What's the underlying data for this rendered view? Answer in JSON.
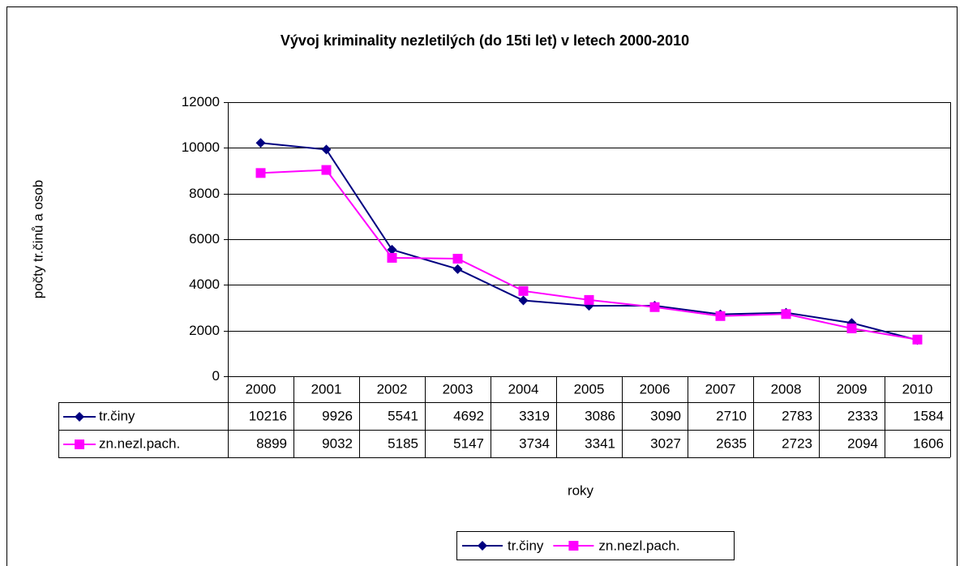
{
  "chart_data": {
    "type": "line",
    "title": "Vývoj kriminality nezletilých (do 15ti let) v letech 2000-2010",
    "ylabel": "počty tr.činů a osob",
    "xlabel": "roky",
    "categories": [
      "2000",
      "2001",
      "2002",
      "2003",
      "2004",
      "2005",
      "2006",
      "2007",
      "2008",
      "2009",
      "2010"
    ],
    "series": [
      {
        "name": "tr.činy",
        "color": "#000080",
        "marker": "diamond",
        "values": [
          10216,
          9926,
          5541,
          4692,
          3319,
          3086,
          3090,
          2710,
          2783,
          2333,
          1584
        ]
      },
      {
        "name": "zn.nezl.pach.",
        "color": "#ff00ff",
        "marker": "square",
        "values": [
          8899,
          9032,
          5185,
          5147,
          3734,
          3341,
          3027,
          2635,
          2723,
          2094,
          1606
        ]
      }
    ],
    "ylim": [
      0,
      12000
    ],
    "yticks": [
      0,
      2000,
      4000,
      6000,
      8000,
      10000,
      12000
    ],
    "grid": true,
    "legend": "bottom"
  }
}
